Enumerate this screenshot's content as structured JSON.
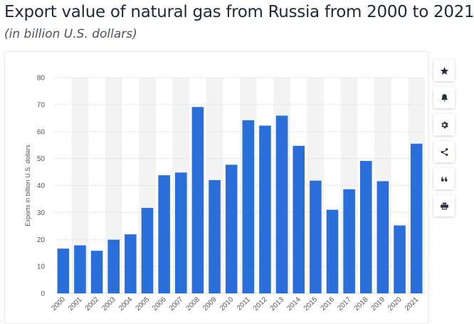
{
  "header": {
    "title": "Export value of natural gas from Russia from 2000 to 2021",
    "subtitle": "(in billion U.S. dollars)"
  },
  "toolbar": {
    "buttons": [
      {
        "icon": "star-icon"
      },
      {
        "icon": "bell-icon"
      },
      {
        "icon": "gear-icon"
      },
      {
        "icon": "share-icon"
      },
      {
        "icon": "quote-icon"
      },
      {
        "icon": "print-icon"
      }
    ]
  },
  "colors": {
    "bar": "#2a6ed9",
    "band": "#f3f3f3",
    "grid": "#dcdcdc",
    "axis_text": "#555555"
  },
  "chart_data": {
    "type": "bar",
    "categories": [
      "2000",
      "2001",
      "2002",
      "2003",
      "2004",
      "2005",
      "2006",
      "2007",
      "2008",
      "2009",
      "2010",
      "2011",
      "2012",
      "2013",
      "2014",
      "2015",
      "2016",
      "2017",
      "2018",
      "2019",
      "2020",
      "2021"
    ],
    "values": [
      16.6,
      17.8,
      15.8,
      19.9,
      21.9,
      31.7,
      43.8,
      44.8,
      69.1,
      42.0,
      47.7,
      64.2,
      62.2,
      65.9,
      54.7,
      41.8,
      31.0,
      38.6,
      49.1,
      41.6,
      25.2,
      55.5
    ],
    "title": "Export value of natural gas from Russia from 2000 to 2021",
    "subtitle": "(in billion U.S. dollars)",
    "ylabel": "Exports in billion U.S. dollars",
    "xlabel": "",
    "ylim": [
      0,
      80
    ],
    "yticks": [
      0,
      10,
      20,
      30,
      40,
      50,
      60,
      70,
      80
    ],
    "grid": true,
    "legend": "none"
  }
}
